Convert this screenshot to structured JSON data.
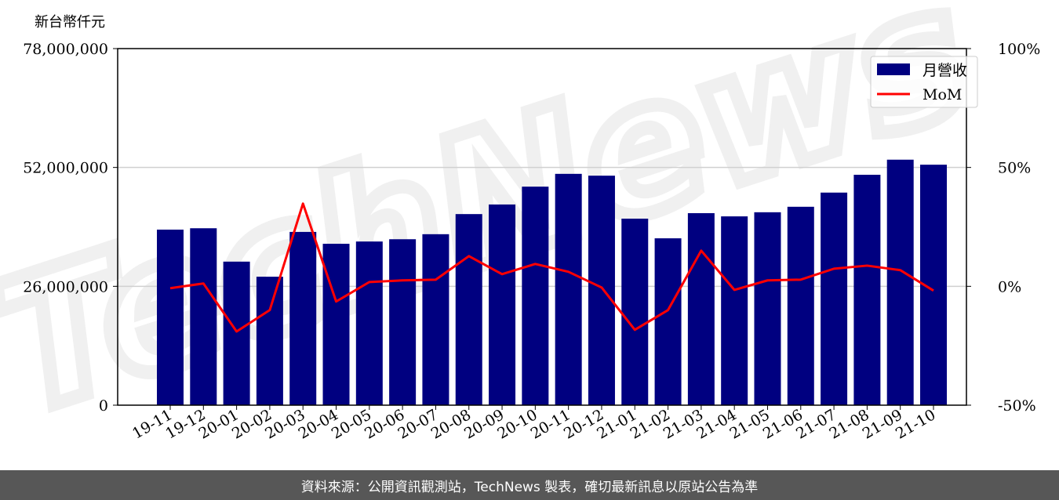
{
  "chart_data": {
    "type": "bar",
    "ylabel": "新台幣仟元",
    "categories": [
      "19-11",
      "19-12",
      "20-01",
      "20-02",
      "20-03",
      "20-04",
      "20-05",
      "20-06",
      "20-07",
      "20-08",
      "20-09",
      "20-10",
      "20-11",
      "20-12",
      "21-01",
      "21-02",
      "21-03",
      "21-04",
      "21-05",
      "21-06",
      "21-07",
      "21-08",
      "21-09",
      "21-10"
    ],
    "series": [
      {
        "name": "月營收",
        "type": "bar",
        "axis": "left",
        "color": "#000080",
        "values": [
          38400000,
          38700000,
          31400000,
          28100000,
          37900000,
          35300000,
          35800000,
          36300000,
          37400000,
          41800000,
          43900000,
          47800000,
          50600000,
          50200000,
          40800000,
          36500000,
          42000000,
          41300000,
          42200000,
          43400000,
          46500000,
          50400000,
          53700000,
          52600000
        ]
      },
      {
        "name": "MoM",
        "type": "line",
        "axis": "right",
        "color": "#ff0000",
        "values": [
          -0.8,
          1.2,
          -19,
          -10,
          34.8,
          -6.4,
          1.8,
          2.5,
          2.8,
          12.7,
          5.1,
          9.4,
          6.1,
          -0.5,
          -18.3,
          -10,
          15,
          -1.5,
          2.5,
          2.8,
          7.4,
          8.7,
          6.8,
          -1.8
        ]
      }
    ],
    "ylim": [
      0,
      78000000
    ],
    "yticks": [
      "0",
      "26,000,000",
      "52,000,000",
      "78,000,000"
    ],
    "y2lim": [
      -50,
      100
    ],
    "y2ticks": [
      "-50%",
      "0%",
      "50%",
      "100%"
    ],
    "grid": "horizontal",
    "legend": "top-right",
    "watermark": "TechNews"
  },
  "footer": {
    "source": "資料來源：公開資訊觀測站，TechNews 製表，確切最新訊息以原站公告為準"
  }
}
